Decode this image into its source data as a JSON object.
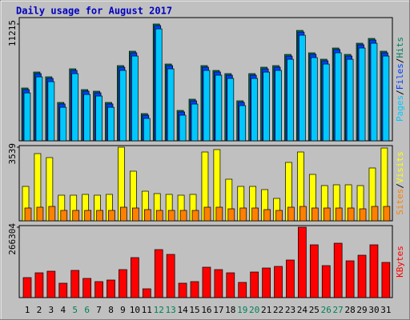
{
  "chart_data": [
    {
      "type": "bar",
      "title": "Daily usage for August 2017",
      "legend_separator": "/",
      "ylim": [
        0,
        11830
      ],
      "yticks": [
        11215
      ],
      "series": [
        {
          "name": "Hits",
          "color": "#00805c",
          "values": [
            5069,
            6605,
            6144,
            3686,
            6912,
            4915,
            4762,
            3686,
            7219,
            8602,
            2611,
            11215,
            7373,
            2918,
            3994,
            7219,
            6758,
            6451,
            3840,
            6451,
            7066,
            7219,
            8294,
            10598,
            8448,
            7834,
            8909,
            8294,
            9370,
            9830,
            8602
          ]
        },
        {
          "name": "Files",
          "color": "#0040ff",
          "values": [
            4920,
            6450,
            5990,
            3540,
            6760,
            4770,
            4610,
            3540,
            7070,
            8450,
            2460,
            11060,
            7220,
            2770,
            3840,
            7070,
            6610,
            6300,
            3690,
            6300,
            6910,
            7070,
            8140,
            10440,
            8300,
            7680,
            8760,
            8140,
            9220,
            9680,
            8450
          ]
        },
        {
          "name": "Pages",
          "color": "#00c8ff",
          "values": [
            4600,
            6140,
            5680,
            3220,
            6450,
            4450,
            4300,
            3220,
            6760,
            8140,
            2150,
            10750,
            6910,
            2460,
            3530,
            6760,
            6300,
            5990,
            3380,
            5990,
            6600,
            6760,
            7830,
            10140,
            7990,
            7370,
            8450,
            7830,
            8910,
            9370,
            8140
          ]
        }
      ]
    },
    {
      "type": "bar",
      "ylim": [
        0,
        3616
      ],
      "yticks": [
        3539
      ],
      "series": [
        {
          "name": "Visits",
          "color": "#ffff00",
          "values": [
            1654,
            3231,
            3039,
            1231,
            1231,
            1270,
            1231,
            1270,
            3539,
            2385,
            1423,
            1308,
            1270,
            1231,
            1270,
            3308,
            3424,
            2000,
            1654,
            1654,
            1500,
            1077,
            2808,
            3308,
            2231,
            1693,
            1731,
            1731,
            1693,
            2539,
            3500
          ]
        },
        {
          "name": "Sites",
          "color": "#ff8000",
          "values": [
            616,
            654,
            692,
            500,
            500,
            500,
            500,
            500,
            654,
            616,
            539,
            500,
            500,
            500,
            500,
            654,
            654,
            577,
            616,
            616,
            539,
            500,
            654,
            692,
            616,
            616,
            616,
            616,
            577,
            692,
            692
          ]
        }
      ]
    },
    {
      "type": "bar",
      "ylim": [
        0,
        272356
      ],
      "yticks": [
        266304
      ],
      "categories": [
        "1",
        "2",
        "3",
        "4",
        "5",
        "6",
        "7",
        "8",
        "9",
        "10",
        "11",
        "12",
        "13",
        "14",
        "15",
        "16",
        "17",
        "18",
        "19",
        "20",
        "21",
        "22",
        "23",
        "24",
        "25",
        "26",
        "27",
        "28",
        "29",
        "30",
        "31"
      ],
      "category_colors": [
        "#000000",
        "#000000",
        "#000000",
        "#000000",
        "#00805c",
        "#00805c",
        "#000000",
        "#000000",
        "#000000",
        "#000000",
        "#000000",
        "#00805c",
        "#00805c",
        "#000000",
        "#000000",
        "#000000",
        "#000000",
        "#000000",
        "#00805c",
        "#00805c",
        "#000000",
        "#000000",
        "#000000",
        "#000000",
        "#000000",
        "#00805c",
        "#00805c",
        "#000000",
        "#000000",
        "#000000",
        "#000000"
      ],
      "series": [
        {
          "name": "KBytes",
          "color": "#ff0000",
          "values": [
            75650,
            93806,
            99858,
            54468,
            102884,
            72624,
            60520,
            66572,
            105910,
            151300,
            33286,
            181560,
            163404,
            54468,
            60520,
            114988,
            105910,
            93806,
            57494,
            96832,
            111962,
            118014,
            142222,
            266304,
            199716,
            121040,
            205768,
            139196,
            160378,
            199716,
            133144
          ]
        }
      ]
    }
  ]
}
